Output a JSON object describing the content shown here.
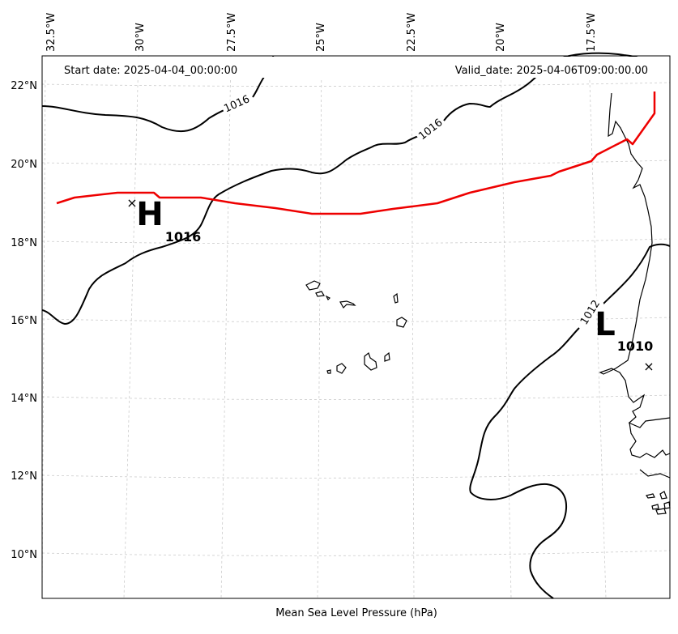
{
  "header": {
    "start_date": "Start date: 2025-04-04_00:00:00",
    "valid_date": "Valid_date: 2025-04-06T09:00:00.00"
  },
  "footer": {
    "caption": "Mean Sea Level Pressure (hPa)"
  },
  "axes": {
    "lon_ticks": [
      "32.5°W",
      "30°W",
      "27.5°W",
      "25°W",
      "22.5°W",
      "20°W",
      "17.5°W"
    ],
    "lat_ticks": [
      "22°N",
      "20°N",
      "18°N",
      "16°N",
      "14°N",
      "12°N",
      "10°N"
    ]
  },
  "contour_labels": [
    "1016",
    "1016",
    "1012"
  ],
  "pressure_centers": [
    {
      "letter": "H",
      "value": "1016"
    },
    {
      "letter": "L",
      "value": "1010"
    }
  ],
  "colors": {
    "track": "#ee0000",
    "isobar": "#000000",
    "grid": "#cccccc"
  }
}
